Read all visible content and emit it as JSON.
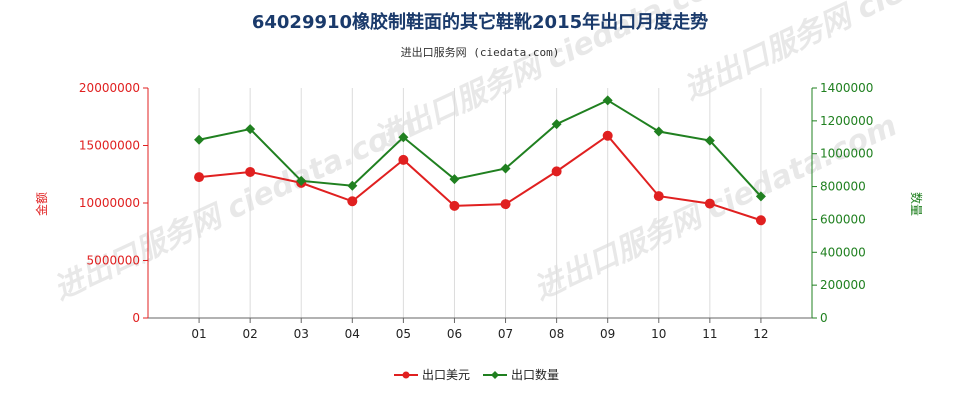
{
  "chart_data": {
    "type": "line",
    "title": "64029910橡胶制鞋面的其它鞋靴2015年出口月度走势",
    "subtitle": "进出口服务网 (ciedata.com)",
    "watermark": "进出口服务网 ciedata.com",
    "categories": [
      "01",
      "02",
      "03",
      "04",
      "05",
      "06",
      "07",
      "08",
      "09",
      "10",
      "11",
      "12"
    ],
    "left_axis": {
      "label": "金额",
      "ylim": [
        0,
        20000000
      ],
      "ticks": [
        "0",
        "5000000",
        "10000000",
        "15000000",
        "20000000"
      ],
      "tick_values": [
        0,
        5000000,
        10000000,
        15000000,
        20000000
      ],
      "color": "#e02020"
    },
    "right_axis": {
      "label": "数量",
      "ylim": [
        0,
        1400000
      ],
      "ticks": [
        "0",
        "200000",
        "400000",
        "600000",
        "800000",
        "1000000",
        "1200000",
        "1400000"
      ],
      "tick_values": [
        0,
        200000,
        400000,
        600000,
        800000,
        1000000,
        1200000,
        1400000
      ],
      "color": "#208020"
    },
    "series": [
      {
        "name": "出口美元",
        "axis": "left",
        "color": "#e02020",
        "marker": "circle",
        "values": [
          12250000,
          12700000,
          11750000,
          10150000,
          13750000,
          9750000,
          9900000,
          12750000,
          15850000,
          10600000,
          9950000,
          8500000
        ]
      },
      {
        "name": "出口数量",
        "axis": "right",
        "color": "#208020",
        "marker": "diamond",
        "values": [
          1085000,
          1150000,
          835000,
          805000,
          1100000,
          845000,
          910000,
          1180000,
          1325000,
          1135000,
          1080000,
          740000
        ]
      }
    ],
    "grid": "vertical",
    "legend_position": "bottom-center"
  }
}
